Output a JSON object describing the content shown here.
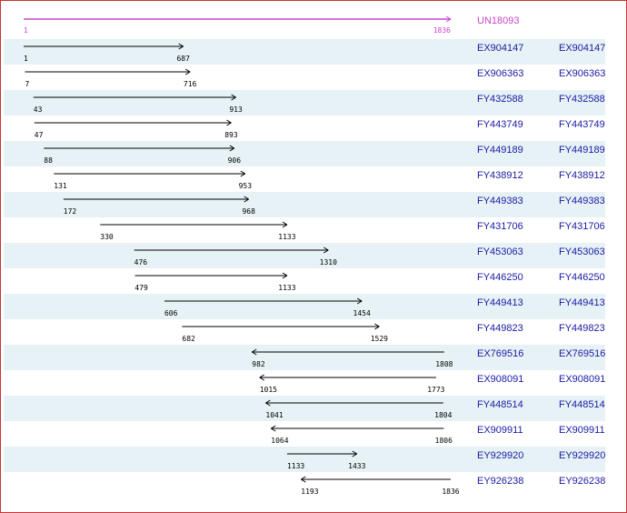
{
  "reference": {
    "id": "UN18093",
    "start": 1,
    "end": 1836,
    "color": "#cc44cc"
  },
  "colors": {
    "link": "#1a1aa6",
    "stripe": "#e6f2f5",
    "line": "#000000",
    "border": "#cc3333"
  },
  "alignments": [
    {
      "id": "EX904147",
      "link": "EX904147",
      "start": 1,
      "end": 687,
      "strand": "+"
    },
    {
      "id": "EX906363",
      "link": "EX906363",
      "start": 7,
      "end": 716,
      "strand": "+"
    },
    {
      "id": "FY432588",
      "link": "FY432588",
      "start": 43,
      "end": 913,
      "strand": "+"
    },
    {
      "id": "FY443749",
      "link": "FY443749",
      "start": 47,
      "end": 893,
      "strand": "+"
    },
    {
      "id": "FY449189",
      "link": "FY449189",
      "start": 88,
      "end": 906,
      "strand": "+"
    },
    {
      "id": "FY438912",
      "link": "FY438912",
      "start": 131,
      "end": 953,
      "strand": "+"
    },
    {
      "id": "FY449383",
      "link": "FY449383",
      "start": 172,
      "end": 968,
      "strand": "+"
    },
    {
      "id": "FY431706",
      "link": "FY431706",
      "start": 330,
      "end": 1133,
      "strand": "+"
    },
    {
      "id": "FY453063",
      "link": "FY453063",
      "start": 476,
      "end": 1310,
      "strand": "+"
    },
    {
      "id": "FY446250",
      "link": "FY446250",
      "start": 479,
      "end": 1133,
      "strand": "+"
    },
    {
      "id": "FY449413",
      "link": "FY449413",
      "start": 606,
      "end": 1454,
      "strand": "+"
    },
    {
      "id": "FY449823",
      "link": "FY449823",
      "start": 682,
      "end": 1529,
      "strand": "+"
    },
    {
      "id": "EX769516",
      "link": "EX769516",
      "start": 982,
      "end": 1808,
      "strand": "-"
    },
    {
      "id": "EX908091",
      "link": "EX908091",
      "start": 1015,
      "end": 1773,
      "strand": "-"
    },
    {
      "id": "FY448514",
      "link": "FY448514",
      "start": 1041,
      "end": 1804,
      "strand": "-"
    },
    {
      "id": "EX909911",
      "link": "EX909911",
      "start": 1064,
      "end": 1806,
      "strand": "-"
    },
    {
      "id": "EY929920",
      "link": "EY929920",
      "start": 1133,
      "end": 1433,
      "strand": "+"
    },
    {
      "id": "EY926238",
      "link": "EY926238",
      "start": 1193,
      "end": 1836,
      "strand": "-"
    }
  ]
}
